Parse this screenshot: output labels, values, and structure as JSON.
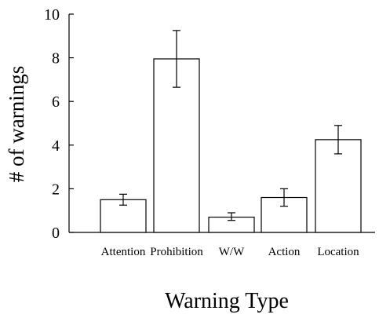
{
  "chart_data": {
    "type": "bar",
    "title": "",
    "xlabel": "Warning Type",
    "ylabel": "# of warnings",
    "ylim": [
      0,
      10
    ],
    "yticks": [
      "0",
      "2",
      "4",
      "6",
      "8",
      "10"
    ],
    "categories": [
      "Attention",
      "Prohibition",
      "W/W",
      "Action",
      "Location"
    ],
    "values": [
      1.5,
      7.95,
      0.7,
      1.6,
      4.25
    ],
    "error_low": [
      1.25,
      6.65,
      0.55,
      1.2,
      3.6
    ],
    "error_high": [
      1.75,
      9.25,
      0.9,
      2.0,
      4.9
    ],
    "grid": false,
    "bar_fill": "#ffffff",
    "bar_stroke": "#000000"
  }
}
